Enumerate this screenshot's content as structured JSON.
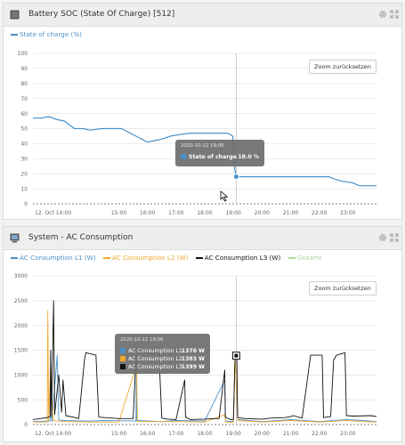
{
  "colors": {
    "soc": "#4a90c9",
    "l1": "#4a90c9",
    "l2": "#f0a830",
    "l3": "#111111",
    "gesamt": "#a9d99b",
    "grid": "#e6e6e6"
  },
  "icons": {
    "panel1": "battery-icon",
    "panel2": "monitor-icon",
    "settings": "gear-icon",
    "expand": "expand-icon"
  },
  "panel1": {
    "title": "Battery SOC (State Of Charge) [512]",
    "legend": [
      "State of charge (%)"
    ],
    "zoom_label": "Zoom zurücksetzen",
    "tooltip": {
      "date": "2020-10-12 19:06",
      "series": "State of charge",
      "value": "18.0 %"
    }
  },
  "panel2": {
    "title": "System - AC Consumption",
    "legend": [
      "AC Consumption L1 (W)",
      "AC Consumption L2 (W)",
      "AC Consumption L3 (W)",
      "Gesamt"
    ],
    "zoom_label": "Zoom zurücksetzen",
    "tooltip": {
      "date": "2020-10-12 19:06",
      "rows": [
        {
          "label": "AC Consumption L1",
          "value": "1376 W"
        },
        {
          "label": "AC Consumption L2",
          "value": "1383 W"
        },
        {
          "label": "AC Consumption L3",
          "value": "1399 W"
        }
      ]
    }
  },
  "chart_data": [
    {
      "type": "line",
      "title": "Battery SOC (State Of Charge) [512]",
      "xlabel": "",
      "ylabel": "",
      "x_range_hours": [
        12.0,
        24.0
      ],
      "x_ticks": [
        "12. Oct 14:00",
        "15:00",
        "16:00",
        "17:00",
        "18:00",
        "19:00",
        "20:00",
        "21:00",
        "22:00",
        "23:00"
      ],
      "x_tick_hours": [
        14,
        15,
        16,
        17,
        18,
        19,
        20,
        21,
        22,
        23
      ],
      "ylim": [
        0,
        100
      ],
      "y_ticks": [
        0,
        10,
        20,
        30,
        40,
        50,
        60,
        70,
        80,
        90,
        100
      ],
      "grid": true,
      "legend_position": "top-left",
      "crosshair_hour": 19.1,
      "series": [
        {
          "name": "State of charge (%)",
          "points": [
            [
              12.0,
              57
            ],
            [
              12.3,
              57
            ],
            [
              12.55,
              58
            ],
            [
              12.85,
              56
            ],
            [
              13.1,
              55
            ],
            [
              13.45,
              50
            ],
            [
              13.75,
              50
            ],
            [
              14.0,
              49
            ],
            [
              14.4,
              50
            ],
            [
              14.8,
              50
            ],
            [
              15.1,
              50
            ],
            [
              15.4,
              47
            ],
            [
              15.7,
              44
            ],
            [
              16.0,
              41
            ],
            [
              16.25,
              42
            ],
            [
              16.5,
              43
            ],
            [
              16.8,
              45
            ],
            [
              17.1,
              46
            ],
            [
              17.5,
              47
            ],
            [
              18.0,
              47
            ],
            [
              18.5,
              47
            ],
            [
              18.8,
              47
            ],
            [
              18.98,
              45
            ],
            [
              19.05,
              23
            ],
            [
              19.1,
              18
            ],
            [
              19.4,
              18
            ],
            [
              20.0,
              18
            ],
            [
              21.0,
              18
            ],
            [
              22.0,
              18
            ],
            [
              22.35,
              18
            ],
            [
              22.45,
              17
            ],
            [
              22.8,
              15
            ],
            [
              23.15,
              14
            ],
            [
              23.4,
              12
            ],
            [
              24.0,
              12
            ]
          ]
        }
      ]
    },
    {
      "type": "line",
      "title": "System - AC Consumption",
      "xlabel": "",
      "ylabel": "",
      "x_range_hours": [
        12.0,
        24.0
      ],
      "x_ticks": [
        "12. Oct 14:00",
        "15:00",
        "16:00",
        "17:00",
        "18:00",
        "19:00",
        "20:00",
        "21:00",
        "22:00",
        "23:00"
      ],
      "x_tick_hours": [
        14,
        15,
        16,
        17,
        18,
        19,
        20,
        21,
        22,
        23
      ],
      "ylim": [
        0,
        3000
      ],
      "y_ticks": [
        0,
        500,
        1000,
        1500,
        2000,
        2500,
        3000
      ],
      "grid": true,
      "legend_position": "top-left",
      "crosshair_hour": 19.1,
      "series": [
        {
          "name": "AC Consumption L1 (W)",
          "points": [
            [
              12.0,
              60
            ],
            [
              12.6,
              70
            ],
            [
              12.62,
              900
            ],
            [
              12.66,
              60
            ],
            [
              12.85,
              1400
            ],
            [
              12.9,
              100
            ],
            [
              13.0,
              80
            ],
            [
              14.0,
              70
            ],
            [
              14.5,
              80
            ],
            [
              15.6,
              70
            ],
            [
              15.61,
              1300
            ],
            [
              15.63,
              80
            ],
            [
              16.5,
              60
            ],
            [
              17.0,
              80
            ],
            [
              18.0,
              70
            ],
            [
              18.7,
              900
            ],
            [
              18.72,
              70
            ],
            [
              19.0,
              60
            ],
            [
              19.06,
              1376
            ],
            [
              19.15,
              100
            ],
            [
              20.0,
              60
            ],
            [
              21.0,
              100
            ],
            [
              22.0,
              60
            ],
            [
              22.95,
              100
            ],
            [
              23.5,
              80
            ],
            [
              24.0,
              60
            ]
          ]
        },
        {
          "name": "AC Consumption L2 (W)",
          "points": [
            [
              12.0,
              50
            ],
            [
              12.5,
              50
            ],
            [
              12.52,
              2300
            ],
            [
              12.55,
              80
            ],
            [
              12.62,
              1200
            ],
            [
              12.7,
              80
            ],
            [
              13.0,
              60
            ],
            [
              14.0,
              50
            ],
            [
              15.0,
              50
            ],
            [
              15.62,
              1200
            ],
            [
              15.65,
              60
            ],
            [
              17.0,
              60
            ],
            [
              18.0,
              50
            ],
            [
              18.7,
              200
            ],
            [
              18.72,
              50
            ],
            [
              19.0,
              40
            ],
            [
              19.06,
              1383
            ],
            [
              19.15,
              80
            ],
            [
              20.0,
              50
            ],
            [
              21.0,
              80
            ],
            [
              22.0,
              50
            ],
            [
              22.95,
              80
            ],
            [
              23.5,
              60
            ],
            [
              24.0,
              50
            ]
          ]
        },
        {
          "name": "AC Consumption L3 (W)",
          "points": [
            [
              12.0,
              100
            ],
            [
              12.5,
              140
            ],
            [
              12.6,
              160
            ],
            [
              12.62,
              1500
            ],
            [
              12.65,
              160
            ],
            [
              12.72,
              2500
            ],
            [
              12.76,
              200
            ],
            [
              12.9,
              1000
            ],
            [
              13.0,
              250
            ],
            [
              13.05,
              900
            ],
            [
              13.15,
              180
            ],
            [
              13.4,
              150
            ],
            [
              13.6,
              120
            ],
            [
              13.8,
              1300
            ],
            [
              13.85,
              1450
            ],
            [
              14.2,
              1400
            ],
            [
              14.3,
              150
            ],
            [
              15.0,
              120
            ],
            [
              15.5,
              120
            ],
            [
              15.6,
              1400
            ],
            [
              15.7,
              1450
            ],
            [
              16.4,
              1440
            ],
            [
              16.5,
              130
            ],
            [
              16.7,
              110
            ],
            [
              17.0,
              100
            ],
            [
              17.3,
              900
            ],
            [
              17.33,
              150
            ],
            [
              17.5,
              100
            ],
            [
              18.0,
              110
            ],
            [
              18.3,
              120
            ],
            [
              18.5,
              120
            ],
            [
              18.7,
              1100
            ],
            [
              18.72,
              150
            ],
            [
              18.9,
              100
            ],
            [
              19.0,
              100
            ],
            [
              19.06,
              1399
            ],
            [
              19.12,
              1450
            ],
            [
              19.15,
              140
            ],
            [
              19.4,
              120
            ],
            [
              20.0,
              110
            ],
            [
              20.3,
              130
            ],
            [
              20.8,
              140
            ],
            [
              21.0,
              160
            ],
            [
              21.1,
              180
            ],
            [
              21.4,
              130
            ],
            [
              21.7,
              1400
            ],
            [
              22.1,
              1400
            ],
            [
              22.15,
              140
            ],
            [
              22.4,
              160
            ],
            [
              22.5,
              1300
            ],
            [
              22.6,
              1400
            ],
            [
              22.9,
              1450
            ],
            [
              22.95,
              180
            ],
            [
              23.2,
              170
            ],
            [
              23.8,
              180
            ],
            [
              24.0,
              160
            ]
          ]
        }
      ]
    }
  ]
}
